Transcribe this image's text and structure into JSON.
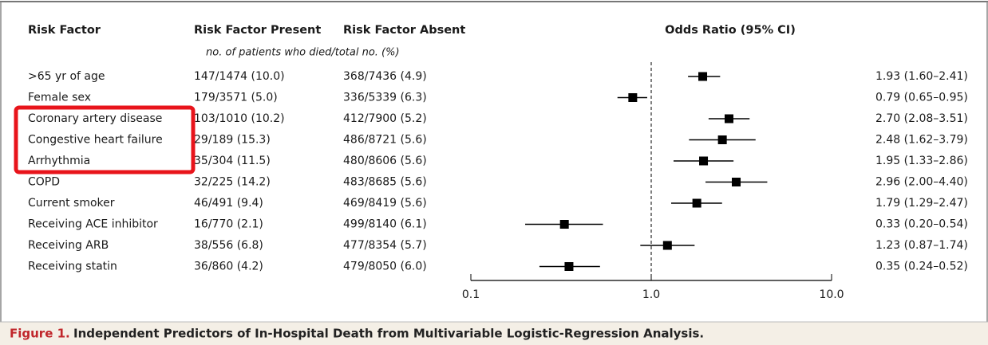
{
  "chart_data": {
    "type": "forest",
    "column_headers": [
      "Risk Factor",
      "Risk Factor Present",
      "Risk Factor Absent",
      "Odds Ratio (95% CI)"
    ],
    "subheader": "no. of patients who died/total no. (%)",
    "categories": [
      ">65 yr of age",
      "Female sex",
      "Coronary artery disease",
      "Congestive heart failure",
      "Arrhythmia",
      "COPD",
      "Current smoker",
      "Receiving ACE inhibitor",
      "Receiving ARB",
      "Receiving statin"
    ],
    "present": [
      "147/1474 (10.0)",
      "179/3571 (5.0)",
      "103/1010 (10.2)",
      "29/189 (15.3)",
      "35/304 (11.5)",
      "32/225 (14.2)",
      "46/491 (9.4)",
      "16/770 (2.1)",
      "38/556 (6.8)",
      "36/860 (4.2)"
    ],
    "absent": [
      "368/7436 (4.9)",
      "336/5339 (6.3)",
      "412/7900 (5.2)",
      "486/8721 (5.6)",
      "480/8606 (5.6)",
      "483/8685 (5.6)",
      "469/8419 (5.6)",
      "499/8140 (6.1)",
      "477/8354 (5.7)",
      "479/8050 (6.0)"
    ],
    "values": [
      1.93,
      0.79,
      2.7,
      2.48,
      1.95,
      2.96,
      1.79,
      0.33,
      1.23,
      0.35
    ],
    "ci_low": [
      1.6,
      0.65,
      2.08,
      1.62,
      1.33,
      2.0,
      1.29,
      0.2,
      0.87,
      0.24
    ],
    "ci_high": [
      2.41,
      0.95,
      3.51,
      3.79,
      2.86,
      4.4,
      2.47,
      0.54,
      1.74,
      0.52
    ],
    "value_labels": [
      "1.93 (1.60–2.41)",
      "0.79 (0.65–0.95)",
      "2.70 (2.08–3.51)",
      "2.48 (1.62–3.79)",
      "1.95 (1.33–2.86)",
      "2.96 (2.00–4.40)",
      "1.79 (1.29–2.47)",
      "0.33 (0.20–0.54)",
      "1.23 (0.87–1.74)",
      "0.35 (0.24–0.52)"
    ],
    "xlim": [
      0.1,
      10
    ],
    "xticks": [
      0.1,
      {
        "value": 1,
        "label": "1.0"
      },
      {
        "value": 10,
        "label": "10.0"
      }
    ],
    "log_x": true,
    "reference_line": 1,
    "color": "#000000",
    "figure_label": "Figure 1.",
    "caption": "Independent Predictors of In-Hospital Death from Multivariable Logistic-Regression Analysis."
  }
}
